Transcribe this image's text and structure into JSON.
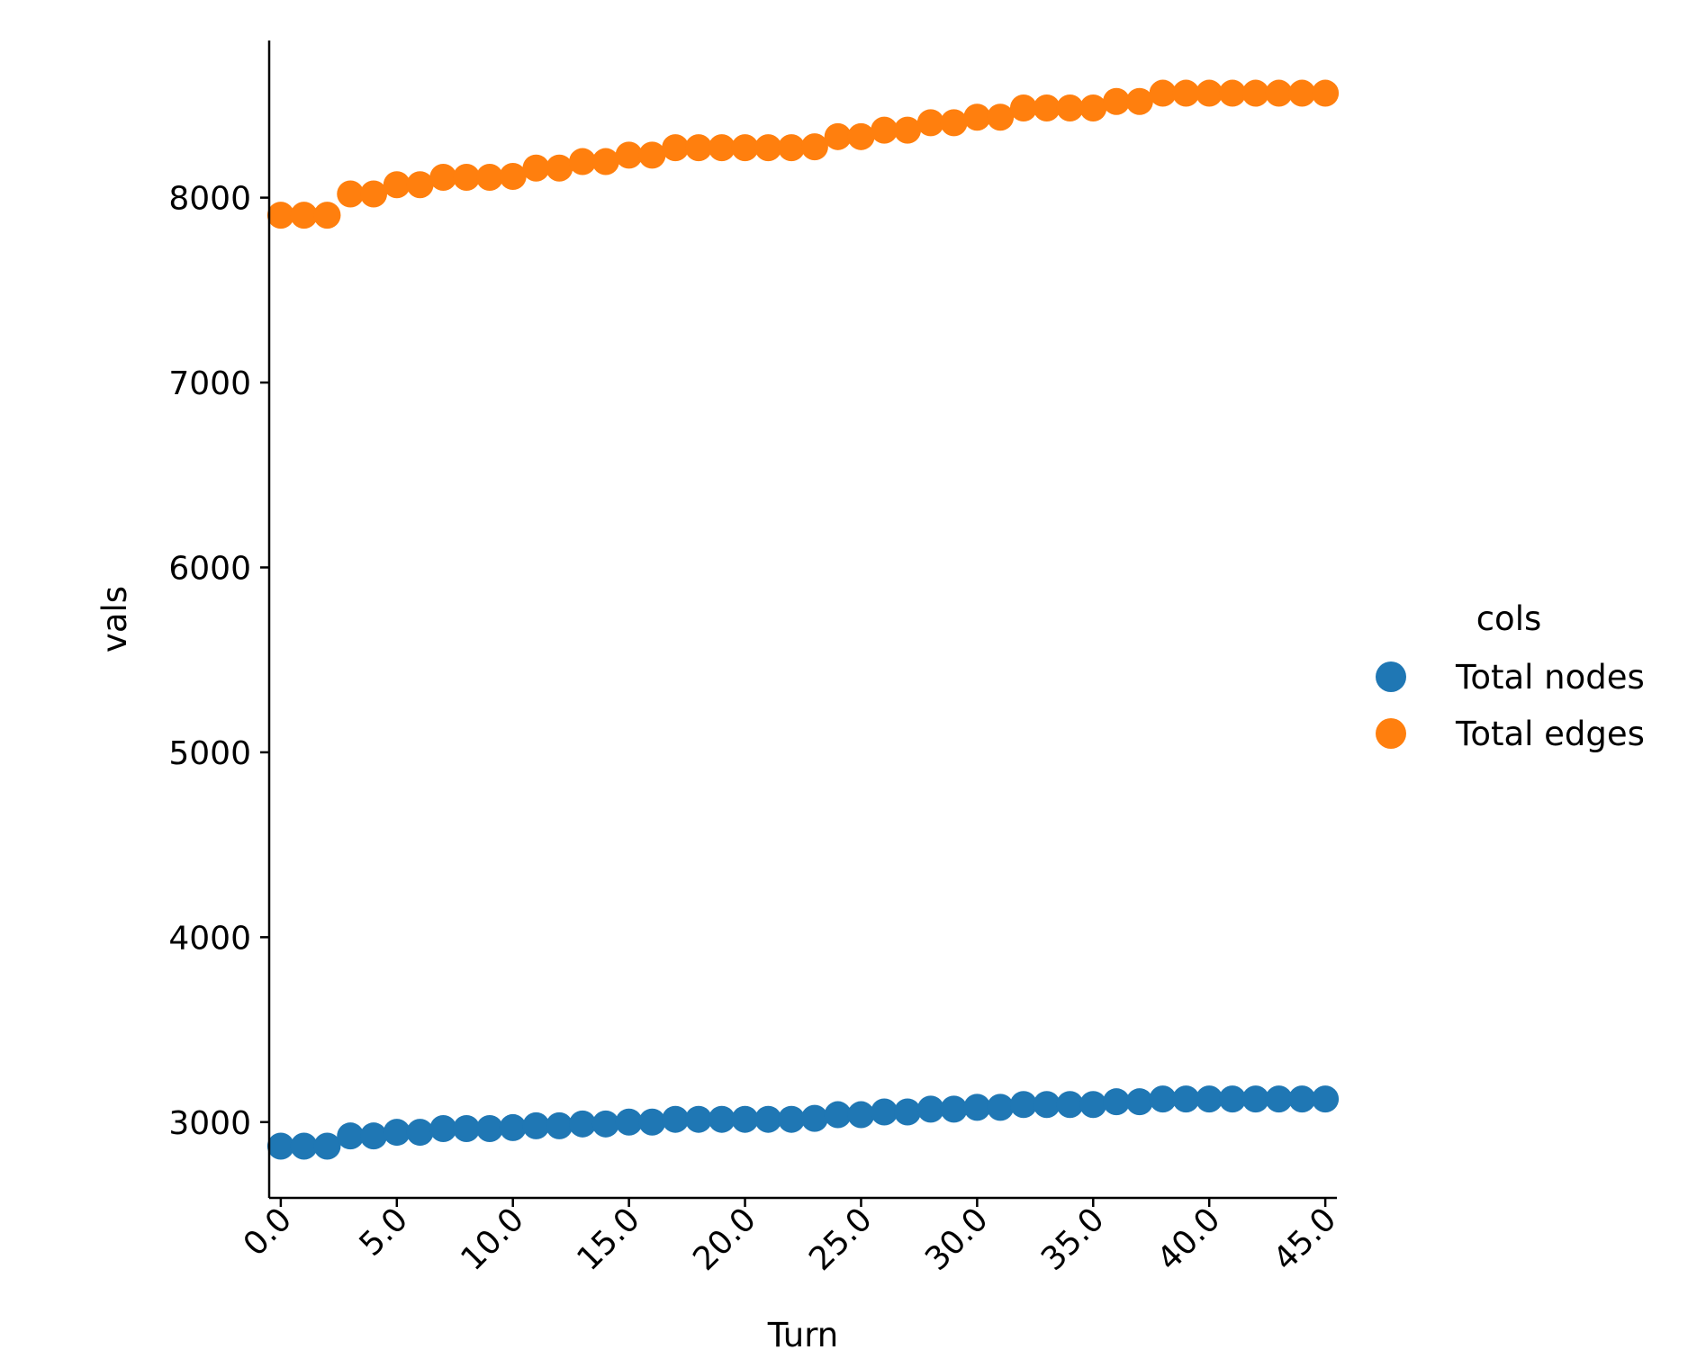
{
  "chart_data": {
    "type": "scatter",
    "xlabel": "Turn",
    "ylabel": "vals",
    "xlim": [
      -0.5,
      45.5
    ],
    "ylim": [
      2590,
      8850
    ],
    "x_ticks": [
      "0.0",
      "5.0",
      "10.0",
      "15.0",
      "20.0",
      "25.0",
      "30.0",
      "35.0",
      "40.0",
      "45.0"
    ],
    "y_ticks": [
      "3000",
      "4000",
      "5000",
      "6000",
      "7000",
      "8000"
    ],
    "grid": false,
    "legend": {
      "title": "cols",
      "placement": "right"
    },
    "x": [
      0,
      1,
      2,
      3,
      4,
      5,
      6,
      7,
      8,
      9,
      10,
      11,
      12,
      13,
      14,
      15,
      16,
      17,
      18,
      19,
      20,
      21,
      22,
      23,
      24,
      25,
      26,
      27,
      28,
      29,
      30,
      31,
      32,
      33,
      34,
      35,
      36,
      37,
      38,
      39,
      40,
      41,
      42,
      43,
      44,
      45
    ],
    "series": [
      {
        "name": "Total nodes",
        "color": "#1f77b4",
        "values": [
          2870,
          2870,
          2870,
          2925,
          2925,
          2945,
          2945,
          2965,
          2965,
          2965,
          2970,
          2980,
          2980,
          2990,
          2990,
          3000,
          3000,
          3015,
          3015,
          3015,
          3015,
          3015,
          3015,
          3020,
          3040,
          3040,
          3055,
          3055,
          3070,
          3070,
          3080,
          3080,
          3095,
          3095,
          3095,
          3095,
          3110,
          3110,
          3125,
          3125,
          3125,
          3125,
          3125,
          3125,
          3125,
          3125
        ]
      },
      {
        "name": "Total edges",
        "color": "#ff7f0e",
        "values": [
          7905,
          7905,
          7905,
          8020,
          8020,
          8070,
          8070,
          8110,
          8110,
          8110,
          8115,
          8160,
          8160,
          8195,
          8195,
          8230,
          8230,
          8270,
          8270,
          8270,
          8270,
          8270,
          8270,
          8275,
          8330,
          8330,
          8365,
          8365,
          8405,
          8405,
          8435,
          8435,
          8485,
          8485,
          8485,
          8485,
          8520,
          8520,
          8565,
          8565,
          8565,
          8565,
          8565,
          8565,
          8565,
          8565
        ]
      }
    ]
  }
}
